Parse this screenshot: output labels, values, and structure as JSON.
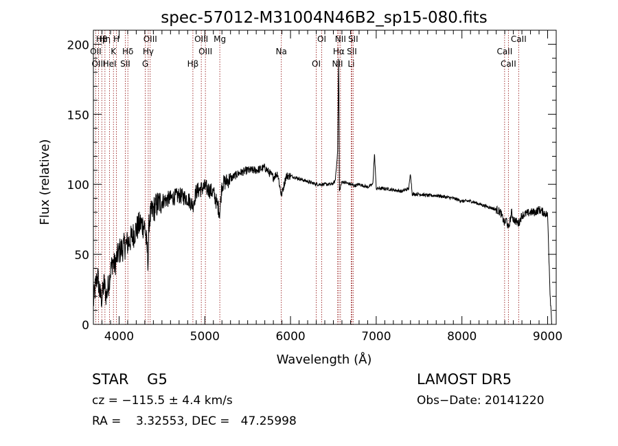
{
  "chart_data": {
    "type": "line",
    "title": "spec-57012-M31004N46B2_sp15-080.fits",
    "xlabel": "Wavelength (Å)",
    "ylabel": "Flux (relative)",
    "xlim": [
      3700,
      9100
    ],
    "ylim": [
      0,
      210
    ],
    "xticks": [
      4000,
      5000,
      6000,
      7000,
      8000,
      9000
    ],
    "yticks": [
      0,
      50,
      100,
      150,
      200
    ],
    "grid": false,
    "line_color": "#000000",
    "marker_color": "#8b0000",
    "spectrum": {
      "x": [
        3700,
        3725,
        3750,
        3775,
        3800,
        3825,
        3850,
        3875,
        3900,
        3925,
        3950,
        3975,
        4000,
        4050,
        4100,
        4150,
        4200,
        4250,
        4300,
        4340,
        4350,
        4400,
        4450,
        4500,
        4600,
        4700,
        4800,
        4861,
        4900,
        5000,
        5100,
        5175,
        5200,
        5300,
        5400,
        5500,
        5600,
        5700,
        5800,
        5850,
        5893,
        5950,
        6000,
        6100,
        6200,
        6300,
        6400,
        6480,
        6520,
        6540,
        6550,
        6563,
        6570,
        6600,
        6650,
        6700,
        6750,
        6800,
        6900,
        6960,
        6980,
        7000,
        7100,
        7200,
        7300,
        7380,
        7400,
        7420,
        7500,
        7600,
        7700,
        7800,
        7900,
        8000,
        8100,
        8200,
        8300,
        8400,
        8450,
        8498,
        8520,
        8542,
        8580,
        8600,
        8662,
        8700,
        8800,
        8850,
        8900,
        8950,
        9000,
        9030,
        9050
      ],
      "y": [
        15,
        28,
        35,
        22,
        18,
        30,
        20,
        28,
        38,
        45,
        42,
        48,
        52,
        55,
        58,
        62,
        68,
        72,
        70,
        45,
        75,
        82,
        86,
        88,
        90,
        92,
        90,
        85,
        95,
        98,
        94,
        80,
        100,
        104,
        108,
        110,
        110,
        112,
        105,
        108,
        92,
        106,
        106,
        104,
        102,
        100,
        100,
        100,
        102,
        115,
        125,
        195,
        95,
        102,
        101,
        100,
        99,
        100,
        98,
        100,
        122,
        97,
        97,
        96,
        95,
        97,
        108,
        93,
        93,
        92,
        92,
        91,
        90,
        88,
        88,
        86,
        84,
        82,
        80,
        72,
        75,
        68,
        80,
        75,
        72,
        78,
        80,
        80,
        82,
        80,
        78,
        20,
        0
      ]
    },
    "line_markers": [
      {
        "label": "Hβ",
        "wavelength": 3798
      },
      {
        "label": "OII",
        "wavelength": 3727
      },
      {
        "label": "OIII",
        "wavelength": 3760
      },
      {
        "label": "Hη",
        "wavelength": 3835
      },
      {
        "label": "K",
        "wavelength": 3934
      },
      {
        "label": "HeI",
        "wavelength": 3889
      },
      {
        "label": "H",
        "wavelength": 3969
      },
      {
        "label": "Hδ",
        "wavelength": 4102
      },
      {
        "label": "SII",
        "wavelength": 4072
      },
      {
        "label": "OIII",
        "wavelength": 4363
      },
      {
        "label": "Hγ",
        "wavelength": 4340
      },
      {
        "label": "G",
        "wavelength": 4305
      },
      {
        "label": "OIII",
        "wavelength": 4959
      },
      {
        "label": "OIII",
        "wavelength": 5007
      },
      {
        "label": "Hβ",
        "wavelength": 4861
      },
      {
        "label": "Mg",
        "wavelength": 5175
      },
      {
        "label": "Na",
        "wavelength": 5893
      },
      {
        "label": "OI",
        "wavelength": 6300
      },
      {
        "label": "OI",
        "wavelength": 6364
      },
      {
        "label": "Hα",
        "wavelength": 6563
      },
      {
        "label": "NII",
        "wavelength": 6548
      },
      {
        "label": "NII",
        "wavelength": 6583
      },
      {
        "label": "SII",
        "wavelength": 6716
      },
      {
        "label": "Li",
        "wavelength": 6708
      },
      {
        "label": "SII",
        "wavelength": 6731
      },
      {
        "label": "CaII",
        "wavelength": 8498
      },
      {
        "label": "CaII",
        "wavelength": 8542
      },
      {
        "label": "CaII",
        "wavelength": 8662
      }
    ]
  },
  "info": {
    "class_line": "STAR    G5",
    "survey": "LAMOST DR5",
    "cz_line": "cz = −115.5 ± 4.4 km/s",
    "obs_date": "Obs−Date: 20141220",
    "radec_line": "RA =    3.32553, DEC =   47.25998"
  }
}
